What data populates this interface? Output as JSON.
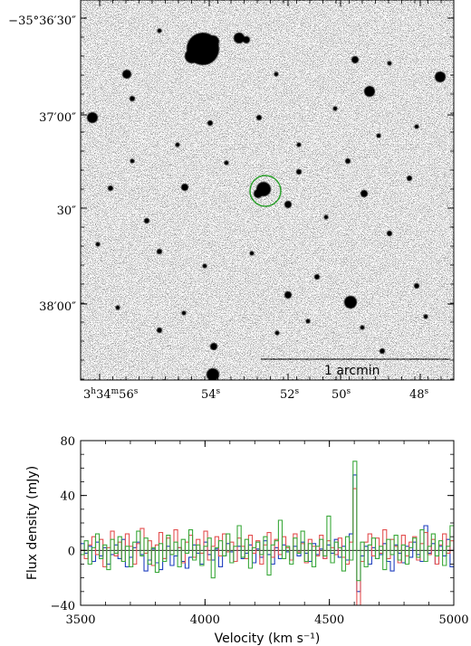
{
  "image_panel": {
    "dec_labels": [
      "−35°36′30″",
      "37′00″",
      "30″",
      "38′00″"
    ],
    "ra_labels": [
      "3h34m56s",
      "54s",
      "52s",
      "50s",
      "48s"
    ],
    "ra_label_parts": [
      {
        "main": "3",
        "sup1": "h",
        "mid": "34",
        "sup2": "m",
        "end": "56",
        "sup3": "s"
      },
      {
        "main": "54",
        "sup": "s"
      },
      {
        "main": "52",
        "sup": "s"
      },
      {
        "main": "50",
        "sup": "s"
      },
      {
        "main": "48",
        "sup": "s"
      }
    ],
    "scale_bar_label": "1 arcmin",
    "marker_color": "#2ca02c"
  },
  "chart_data": {
    "type": "line",
    "xlabel": "Velocity (km s⁻¹)",
    "ylabel": "Flux density (mJy)",
    "xlim": [
      3500,
      5000
    ],
    "ylim": [
      -40,
      80
    ],
    "x_ticks": [
      3500,
      4000,
      4500,
      5000
    ],
    "y_ticks": [
      -40,
      0,
      40,
      80
    ],
    "step": true,
    "x_start": 3500,
    "x_step": 15,
    "series": [
      {
        "color": "#1f3fbf",
        "values": [
          5,
          -2,
          3,
          -8,
          6,
          -4,
          2,
          -10,
          -3,
          4,
          -6,
          8,
          -12,
          -5,
          2,
          6,
          -3,
          -15,
          -7,
          1,
          -9,
          -14,
          -6,
          3,
          -11,
          -4,
          2,
          -8,
          -13,
          -5,
          4,
          -2,
          -10,
          6,
          -3,
          -7,
          1,
          -12,
          -4,
          5,
          -1,
          -8,
          3,
          -6,
          -2,
          4,
          -9,
          1,
          -5,
          7,
          -3,
          -10,
          2,
          -6,
          4,
          -1,
          -7,
          3,
          -4,
          6,
          -2,
          -8,
          5,
          -3,
          1,
          -6,
          4,
          -2,
          8,
          -5,
          3,
          -7,
          12,
          55,
          -30,
          -4,
          3,
          -10,
          2,
          -6,
          -3,
          5,
          -8,
          -15,
          4,
          -2,
          -9,
          3,
          -5,
          6,
          -3,
          -8,
          18,
          -2,
          5,
          -10,
          3,
          -4,
          8,
          -12,
          2,
          -6,
          4,
          -3,
          7,
          -9,
          1,
          -5,
          6,
          -2,
          3
        ]
      },
      {
        "color": "#e35050",
        "values": [
          0,
          -6,
          4,
          10,
          -3,
          8,
          -12,
          2,
          14,
          -4,
          6,
          -8,
          12,
          3,
          -10,
          5,
          16,
          -2,
          7,
          -11,
          4,
          13,
          -6,
          9,
          -3,
          15,
          2,
          -9,
          6,
          11,
          -5,
          8,
          -2,
          14,
          -7,
          3,
          10,
          -4,
          12,
          -1,
          6,
          -8,
          9,
          3,
          -6,
          11,
          -2,
          7,
          -10,
          4,
          13,
          -5,
          8,
          -3,
          10,
          2,
          -7,
          12,
          -1,
          5,
          -9,
          8,
          3,
          -4,
          11,
          -6,
          7,
          2,
          -3,
          9,
          -5,
          -10,
          6,
          45,
          -40,
          -8,
          6,
          12,
          -4,
          9,
          -2,
          15,
          -6,
          8,
          3,
          -9,
          11,
          -4,
          6,
          10,
          -7,
          5,
          13,
          -3,
          8,
          -10,
          4,
          12,
          -2,
          7,
          -6,
          10,
          3,
          -8,
          14,
          -1,
          6,
          9,
          -5,
          11,
          2
        ]
      },
      {
        "color": "#3aa83a",
        "values": [
          -3,
          7,
          -10,
          2,
          12,
          -6,
          4,
          -14,
          8,
          -2,
          10,
          -8,
          3,
          -12,
          6,
          14,
          -4,
          9,
          -10,
          2,
          -16,
          5,
          -8,
          11,
          -3,
          6,
          -12,
          8,
          -2,
          15,
          -7,
          4,
          -11,
          3,
          9,
          -20,
          2,
          7,
          -4,
          12,
          -9,
          3,
          18,
          -5,
          8,
          -13,
          2,
          6,
          -3,
          10,
          -18,
          4,
          7,
          22,
          -6,
          3,
          -10,
          9,
          -2,
          14,
          -8,
          5,
          -12,
          3,
          8,
          -4,
          25,
          -9,
          6,
          2,
          -15,
          10,
          -7,
          65,
          -22,
          6,
          -12,
          4,
          9,
          -6,
          3,
          -14,
          8,
          -3,
          11,
          -7,
          4,
          -10,
          2,
          9,
          -5,
          15,
          -8,
          3,
          12,
          -4,
          7,
          -11,
          3,
          18,
          -6,
          8,
          -9,
          4,
          20,
          -3,
          6,
          -7,
          10
        ]
      }
    ]
  }
}
